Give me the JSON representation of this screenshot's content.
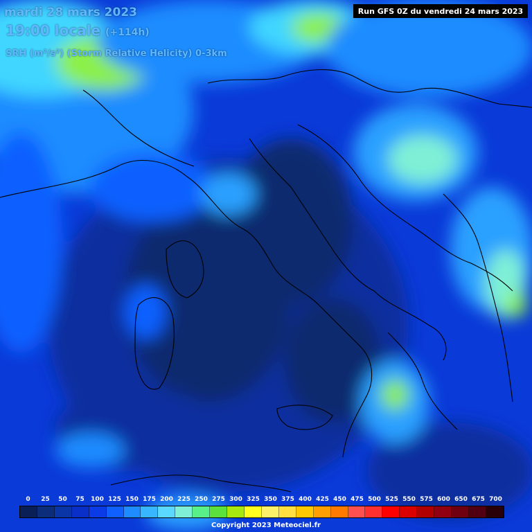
{
  "header": {
    "date": "mardi 28 mars 2023",
    "time": "19:00 locale",
    "offset": "(+114h)",
    "parameter": "SRH (m²/s²) (Storm Relative Helicity) 0-3km",
    "run": "Run GFS 0Z du vendredi 24 mars 2023"
  },
  "legend": {
    "labels": [
      "0",
      "25",
      "50",
      "75",
      "100",
      "125",
      "150",
      "175",
      "200",
      "225",
      "250",
      "275",
      "300",
      "325",
      "350",
      "375",
      "400",
      "425",
      "450",
      "475",
      "500",
      "525",
      "550",
      "575",
      "600",
      "650",
      "675",
      "700"
    ],
    "colors": [
      "#0a1f55",
      "#0b2d7a",
      "#0a35a6",
      "#0a2fc8",
      "#0b3be6",
      "#1060ff",
      "#1e8cff",
      "#38b6ff",
      "#5ad8ff",
      "#7ff0d6",
      "#59f08a",
      "#5ce03c",
      "#a8e810",
      "#ffff20",
      "#fff06a",
      "#ffe040",
      "#ffc800",
      "#ffa000",
      "#ff7a00",
      "#ff5050",
      "#ff3030",
      "#ff0000",
      "#d80000",
      "#b00000",
      "#900010",
      "#700010",
      "#500010",
      "#2a0008"
    ]
  },
  "copyright": "Copyright 2023 Meteociel.fr",
  "colors": {
    "deep": "#0a2a6e",
    "navy": "#0b2f9e",
    "blue": "#0a3ad8",
    "bright_blue": "#1060ff",
    "sky": "#2aa0ff",
    "cyan": "#3fd6ff",
    "aqua": "#7ff0d6",
    "green": "#8cf04a",
    "text_blue": "#5fb8ff"
  }
}
